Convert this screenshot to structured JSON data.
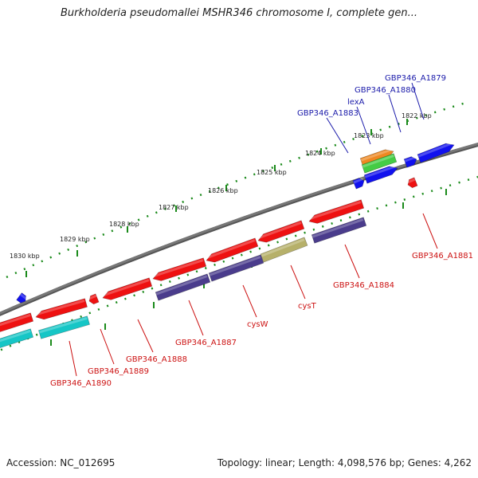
{
  "header": {
    "title": "Burkholderia pseudomallei MSHR346 chromosome I, complete gen..."
  },
  "footer": {
    "accession": "Accession: NC_012695",
    "summary": "Topology: linear; Length: 4,098,576 bp; Genes: 4,262"
  },
  "scale": {
    "tick_labels": [
      "1822 kbp",
      "1823 kbp",
      "1824 kbp",
      "1825 kbp",
      "1826 kbp",
      "1827 kbp",
      "1828 kbp",
      "1829 kbp",
      "1830 kbp"
    ]
  },
  "labels": {
    "forward": [
      "GBP346_A1879",
      "GBP346_A1880",
      "lexA",
      "GBP346_A1883"
    ],
    "reverse": [
      "GBP346_A1881",
      "GBP346_A1884",
      "cysT",
      "cysW",
      "GBP346_A1887",
      "GBP346_A1888",
      "GBP346_A1889",
      "GBP346_A1890"
    ]
  },
  "colors": {
    "backbone": "#777777",
    "tick_green": "#1a8a1a",
    "gene_red": "#ee1111",
    "gene_blue": "#1111ee",
    "cds_purple": "#4a3c8c",
    "cds_olive": "#b6b06a",
    "cds_cyan": "#16c6c6",
    "rna_orange": "#ee8822",
    "rna_green": "#44cc44",
    "label_blue": "#1a1aaa",
    "label_red": "#cc1111"
  }
}
